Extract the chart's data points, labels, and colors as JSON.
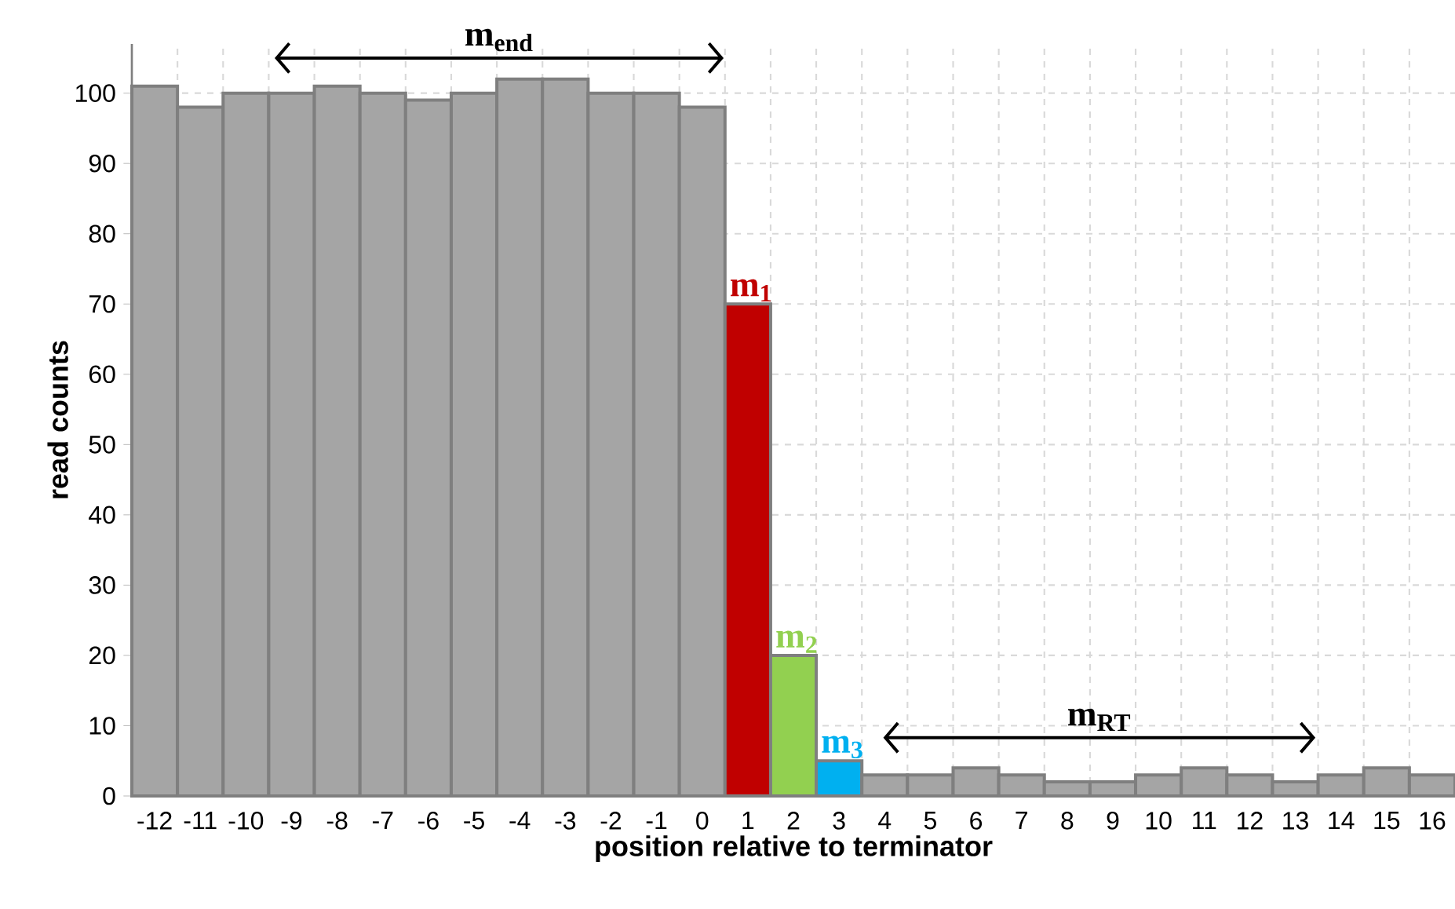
{
  "chart_data": {
    "type": "bar",
    "xlabel": "position relative to terminator",
    "ylabel": "read counts",
    "categories": [
      "-12",
      "-11",
      "-10",
      "-9",
      "-8",
      "-7",
      "-6",
      "-5",
      "-4",
      "-3",
      "-2",
      "-1",
      "0",
      "1",
      "2",
      "3",
      "4",
      "5",
      "6",
      "7",
      "8",
      "9",
      "10",
      "11",
      "12",
      "13",
      "14",
      "15",
      "16"
    ],
    "values": [
      101,
      98,
      100,
      100,
      101,
      100,
      99,
      100,
      102,
      102,
      100,
      100,
      98,
      70,
      20,
      5,
      3,
      3,
      4,
      3,
      2,
      2,
      3,
      4,
      3,
      2,
      3,
      4,
      3
    ],
    "colors": [
      "#a5a5a5",
      "#a5a5a5",
      "#a5a5a5",
      "#a5a5a5",
      "#a5a5a5",
      "#a5a5a5",
      "#a5a5a5",
      "#a5a5a5",
      "#a5a5a5",
      "#a5a5a5",
      "#a5a5a5",
      "#a5a5a5",
      "#a5a5a5",
      "#c00000",
      "#92d050",
      "#00b0f0",
      "#a5a5a5",
      "#a5a5a5",
      "#a5a5a5",
      "#a5a5a5",
      "#a5a5a5",
      "#a5a5a5",
      "#a5a5a5",
      "#a5a5a5",
      "#a5a5a5",
      "#a5a5a5",
      "#a5a5a5",
      "#a5a5a5",
      "#a5a5a5"
    ],
    "ylim": [
      0,
      107
    ],
    "yticks": [
      0,
      10,
      20,
      30,
      40,
      50,
      60,
      70,
      80,
      90,
      100
    ],
    "grid": true,
    "annotations": [
      "m$_{end}$",
      {
        "text": "m$_{1}$",
        "x": "1",
        "y": 70
      },
      {
        "text": "m$_{2}$",
        "x": "2",
        "y": 20
      },
      {
        "text": "m$_{3}$",
        "x": "3",
        "y": 5
      },
      "m$_{RT}$"
    ]
  }
}
